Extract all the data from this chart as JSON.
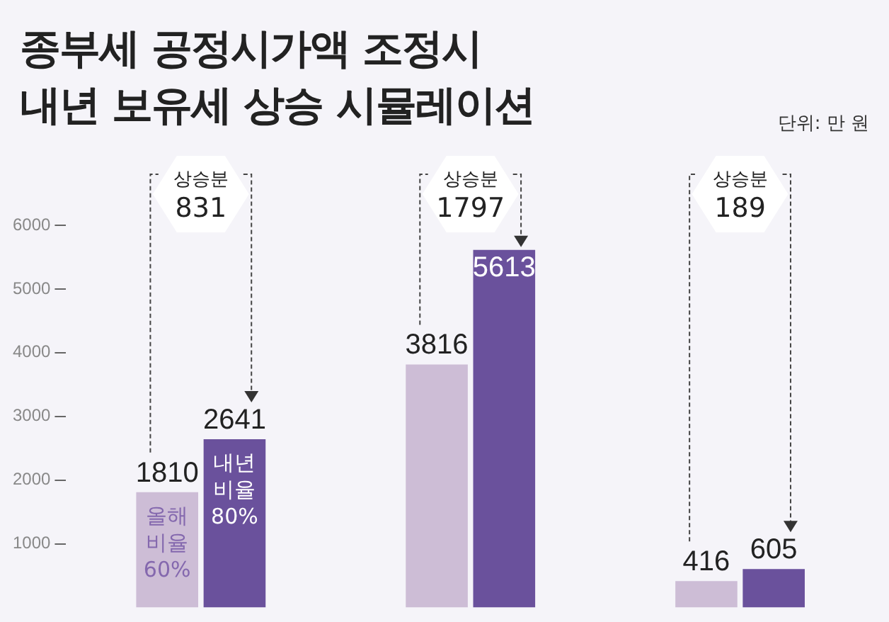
{
  "chart_data": {
    "type": "bar",
    "title": "종부세 공정시가액 조정시\n내년 보유세 상승 시뮬레이션",
    "categories": [
      null,
      null,
      null
    ],
    "series": [
      {
        "name": "올해 비율 60%",
        "color": "#cdbdd6",
        "values": [
          1810,
          3816,
          416
        ]
      },
      {
        "name": "내년 비율 80%",
        "color": "#6a519c",
        "values": [
          2641,
          5613,
          605
        ]
      }
    ],
    "ylim": [
      0,
      6000
    ],
    "yticks": [
      1000,
      2000,
      3000,
      4000,
      5000,
      6000
    ],
    "tick_labels": "y",
    "grid": false,
    "legend": false,
    "data_labels": true,
    "annotations": [
      "단위: 만 원",
      "상승분\n831",
      "상승분\n1797",
      "상승분\n189"
    ]
  }
}
